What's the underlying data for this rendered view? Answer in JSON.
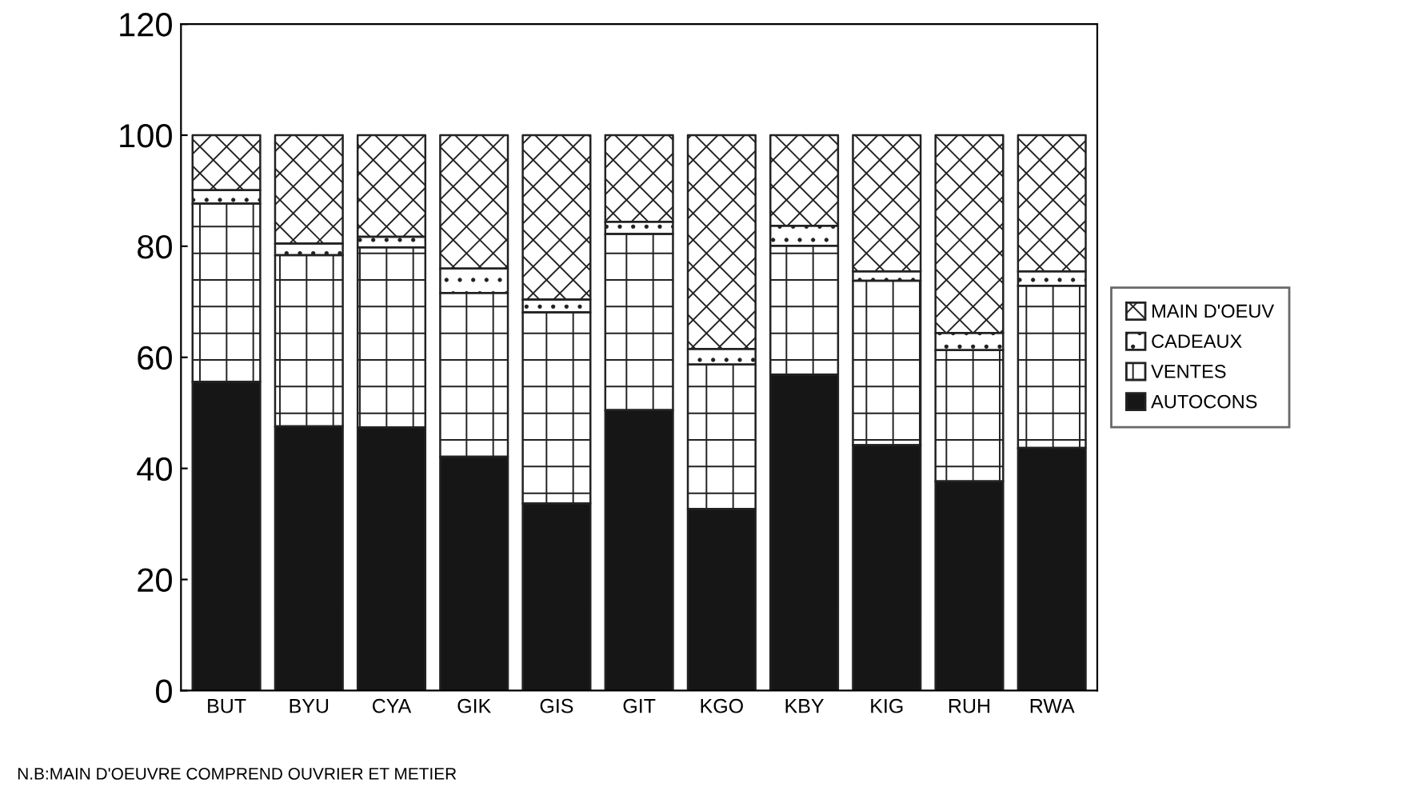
{
  "chart_data": {
    "type": "bar",
    "stacked": true,
    "categories": [
      "BUT",
      "BYU",
      "CYA",
      "GIK",
      "GIS",
      "GIT",
      "KGO",
      "KBY",
      "KIG",
      "RUH",
      "RWA"
    ],
    "series": [
      {
        "name": "AUTOCONS",
        "color": "#161616",
        "values": [
          55.6,
          47.6,
          47.4,
          42.1,
          33.7,
          50.5,
          32.7,
          56.9,
          44.2,
          37.7,
          43.7
        ]
      },
      {
        "name": "VENTES",
        "color": "#ffffff",
        "values": [
          32.1,
          30.8,
          32.4,
          29.5,
          34.4,
          31.7,
          26.0,
          23.2,
          29.6,
          23.6,
          29.2
        ]
      },
      {
        "name": "CADEAUX",
        "color": "#ffffff",
        "values": [
          2.4,
          2.1,
          1.9,
          4.4,
          2.3,
          2.2,
          2.8,
          3.6,
          1.7,
          3.1,
          2.6
        ]
      },
      {
        "name": "MAIN D'OEUV",
        "color": "#ffffff",
        "values": [
          9.9,
          19.5,
          18.3,
          24.0,
          29.6,
          15.6,
          38.5,
          16.3,
          24.5,
          35.6,
          24.5
        ]
      }
    ],
    "ylim": [
      0,
      120
    ],
    "yticks": [
      0,
      20,
      40,
      60,
      80,
      100,
      120
    ],
    "grid": false,
    "legend": "right",
    "annotations": [
      "N.B:MAIN D'OEUVRE COMPREND OUVRIER ET METIER"
    ]
  }
}
